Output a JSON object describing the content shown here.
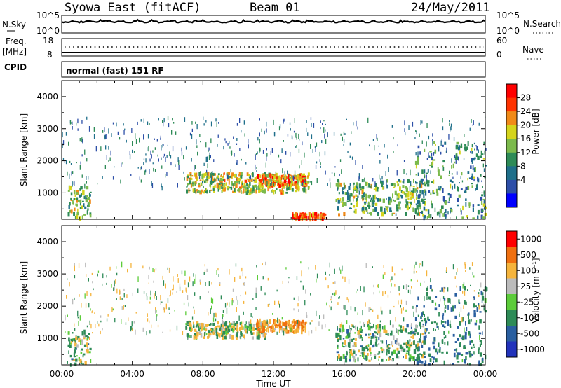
{
  "header": {
    "station": "Syowa East (fitACF)",
    "beam": "Beam 01",
    "date": "24/May/2011"
  },
  "noise_panel": {
    "left_label": "N.Sky",
    "right_label": "N.Search",
    "left_ticks": [
      "10^5",
      "10^0"
    ],
    "right_ticks": [
      "10^5",
      "10^0"
    ]
  },
  "freq_panel": {
    "left_label_line1": "Freq.",
    "left_label_line2": "[MHz]",
    "right_label": "Nave",
    "left_ticks": [
      "18",
      "8"
    ],
    "right_ticks": [
      "60",
      "0"
    ]
  },
  "cpid_panel": {
    "label": "CPID",
    "mode_text": "normal (fast) 151 RF"
  },
  "x_axis": {
    "label": "Time UT",
    "ticks": [
      "00:00",
      "04:00",
      "08:00",
      "12:00",
      "16:00",
      "20:00",
      "00:00"
    ]
  },
  "chart_data": [
    {
      "type": "heatmap",
      "panel": "power",
      "x_quantity": "Time UT (hours)",
      "y_quantity": "Slant Range",
      "ylabel": "Slant Range [km]",
      "xlim": [
        0,
        24
      ],
      "ylim": [
        180,
        4500
      ],
      "y_ticks": [
        1000,
        2000,
        3000,
        4000
      ],
      "colorbar_label": "Power [dB]",
      "colorbar_ticks": [
        "28",
        "24",
        "20",
        "16",
        "12",
        "8",
        "4"
      ],
      "colorbar_colors": [
        "#0000ff",
        "#2d4fa8",
        "#1f6f8a",
        "#2e8b57",
        "#7cba4c",
        "#d4d41c",
        "#f08a18",
        "#ff3300",
        "#ff0000"
      ],
      "echo_regions": [
        {
          "t_start": 0.3,
          "t_end": 1.6,
          "r_min": 180,
          "r_max": 1200,
          "power_db": 16
        },
        {
          "t_start": 7.0,
          "t_end": 14.0,
          "r_min": 1000,
          "r_max": 1600,
          "power_db": 18
        },
        {
          "t_start": 11.0,
          "t_end": 13.8,
          "r_min": 1200,
          "r_max": 1550,
          "power_db": 24
        },
        {
          "t_start": 13.0,
          "t_end": 15.0,
          "r_min": 180,
          "r_max": 350,
          "power_db": 26
        },
        {
          "t_start": 15.5,
          "t_end": 20.5,
          "r_min": 300,
          "r_max": 1400,
          "power_db": 15
        },
        {
          "t_start": 20.0,
          "t_end": 24.0,
          "r_min": 180,
          "r_max": 2600,
          "power_db": 12
        }
      ]
    },
    {
      "type": "heatmap",
      "panel": "velocity",
      "x_quantity": "Time UT (hours)",
      "y_quantity": "Slant Range",
      "ylabel": "Slant Range [km]",
      "xlim": [
        0,
        24
      ],
      "ylim": [
        180,
        4500
      ],
      "y_ticks": [
        1000,
        2000,
        3000,
        4000
      ],
      "colorbar_label": "Velocity [m s⁻¹]",
      "colorbar_ticks": [
        "1000",
        "500",
        "100",
        "25",
        "-25",
        "-100",
        "-500",
        "-1000"
      ],
      "colorbar_colors": [
        "#2233bb",
        "#2a5fa0",
        "#2e8b57",
        "#5ccc3a",
        "#bbbbbb",
        "#f5b43c",
        "#f07010",
        "#ff0000"
      ],
      "echo_regions": [
        {
          "t_start": 0.3,
          "t_end": 1.6,
          "r_min": 180,
          "r_max": 1200,
          "velocity": 100
        },
        {
          "t_start": 7.0,
          "t_end": 11.5,
          "r_min": 1000,
          "r_max": 1500,
          "velocity": 0
        },
        {
          "t_start": 11.0,
          "t_end": 13.8,
          "r_min": 1200,
          "r_max": 1550,
          "velocity": -300
        },
        {
          "t_start": 15.5,
          "t_end": 20.5,
          "r_min": 300,
          "r_max": 1400,
          "velocity": 100
        },
        {
          "t_start": 20.0,
          "t_end": 24.0,
          "r_min": 180,
          "r_max": 2600,
          "velocity": 300
        }
      ]
    }
  ]
}
